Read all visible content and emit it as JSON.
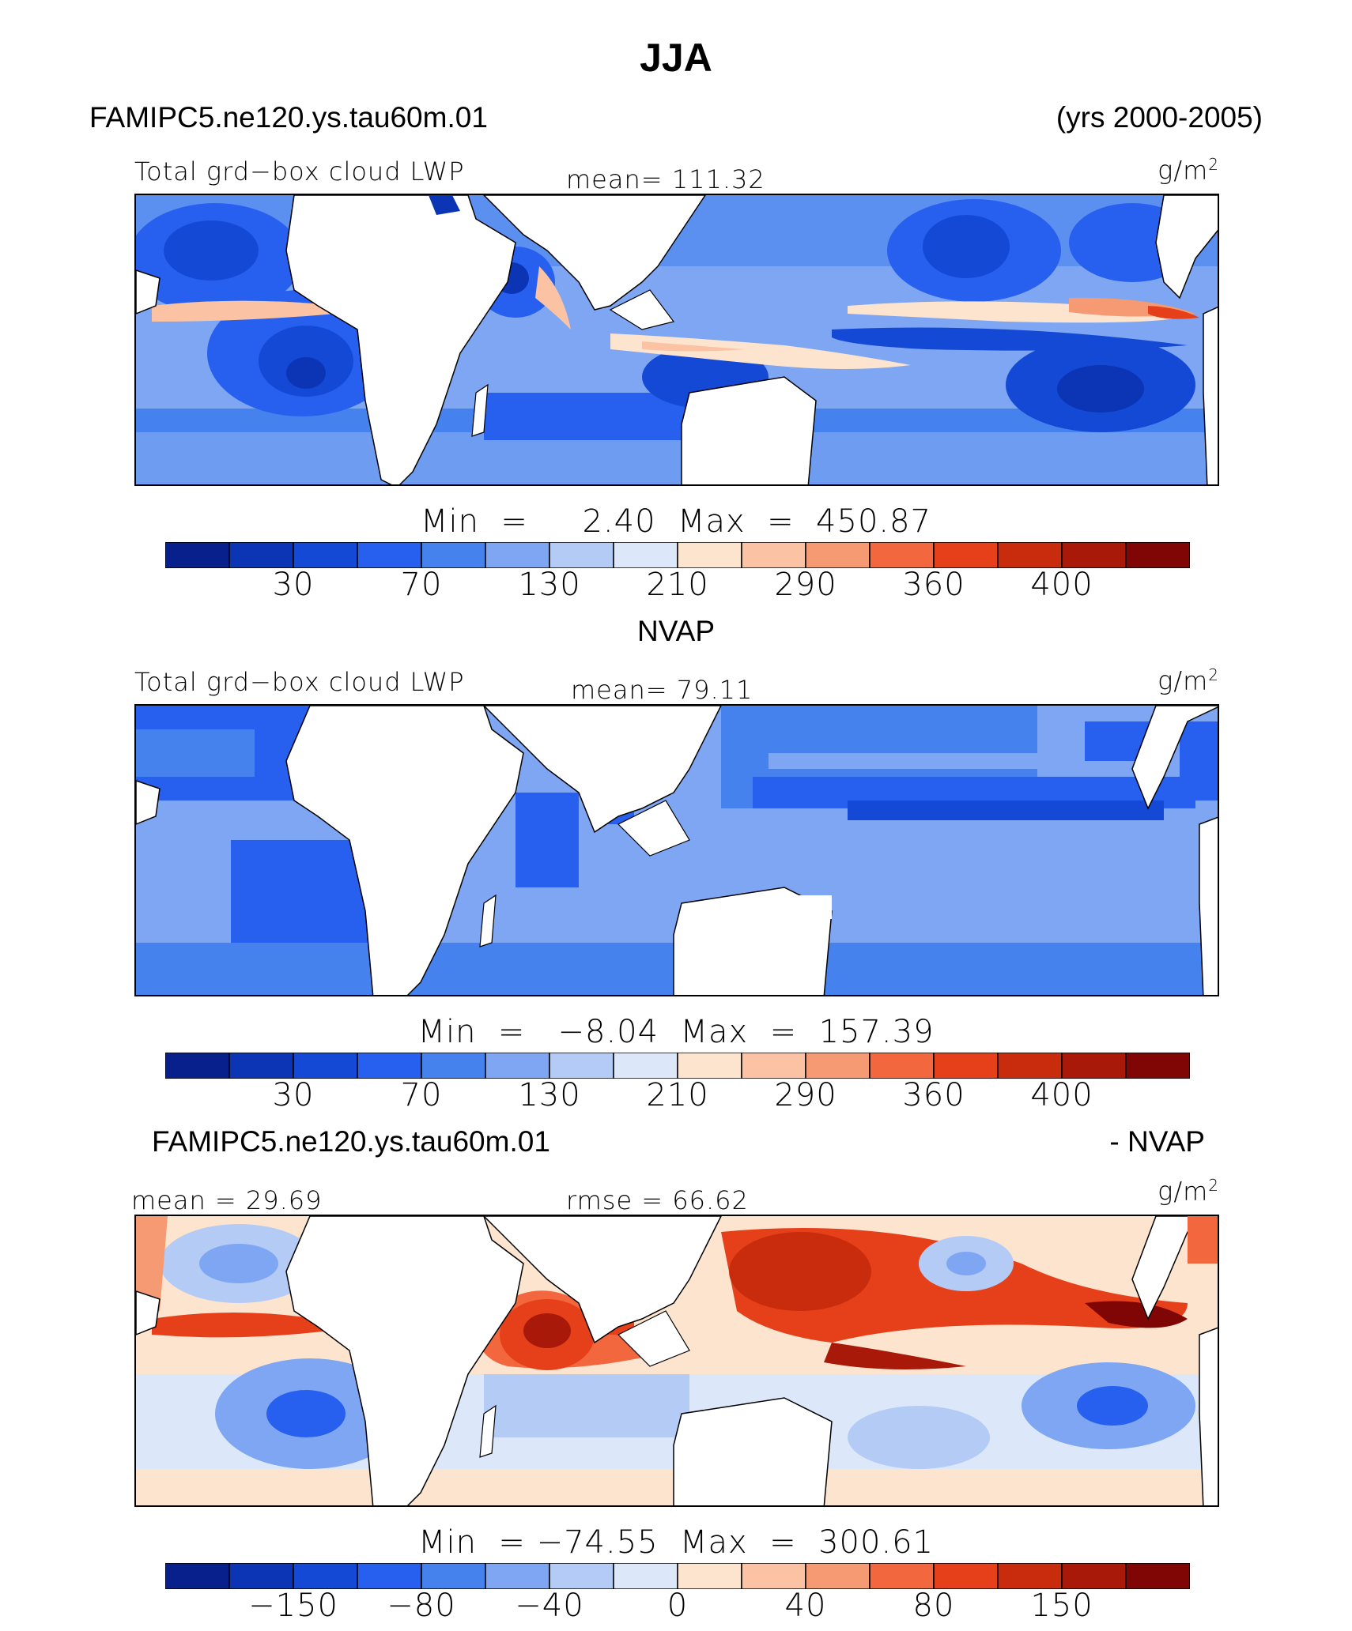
{
  "title": "JJA",
  "units": "g/m",
  "units_sup": "2",
  "panel1": {
    "case": "FAMIPC5.ne120.ys.tau60m.01",
    "years": "(yrs 2000-2005)",
    "variable": "Total grd−box cloud LWP",
    "mean": "mean=  111.32",
    "minmax": "Min  =     2.40  Max  =  450.87"
  },
  "panel2": {
    "case": "NVAP",
    "variable": "Total grd−box cloud LWP",
    "mean": "mean=   79.11",
    "minmax": "Min  =   −8.04  Max  =  157.39"
  },
  "panel3": {
    "case": "FAMIPC5.ne120.ys.tau60m.01",
    "suffix": "- NVAP",
    "mean": "mean =   29.69",
    "rmse": "rmse =   66.62",
    "minmax": "Min  = −74.55  Max  =  300.61"
  },
  "colorbar_abs": {
    "colors": [
      "#08208c",
      "#0b35b5",
      "#1449d6",
      "#2760ee",
      "#4682ee",
      "#7ea6f2",
      "#b4cbf6",
      "#dce8fa",
      "#fde4cf",
      "#fbc3a3",
      "#f69a73",
      "#f3673e",
      "#e6401b",
      "#c82c0c",
      "#a81909",
      "#800505"
    ],
    "labels": [
      "30",
      "70",
      "130",
      "210",
      "290",
      "360",
      "400"
    ]
  },
  "colorbar_diff": {
    "colors": [
      "#08208c",
      "#0b35b5",
      "#1449d6",
      "#2760ee",
      "#4682ee",
      "#7ea6f2",
      "#b4cbf6",
      "#dce8fa",
      "#fde4cf",
      "#fbc3a3",
      "#f69a73",
      "#f3673e",
      "#e6401b",
      "#c82c0c",
      "#a81909",
      "#800505"
    ],
    "labels": [
      "−150",
      "−80",
      "−40",
      "0",
      "40",
      "80",
      "150"
    ]
  }
}
